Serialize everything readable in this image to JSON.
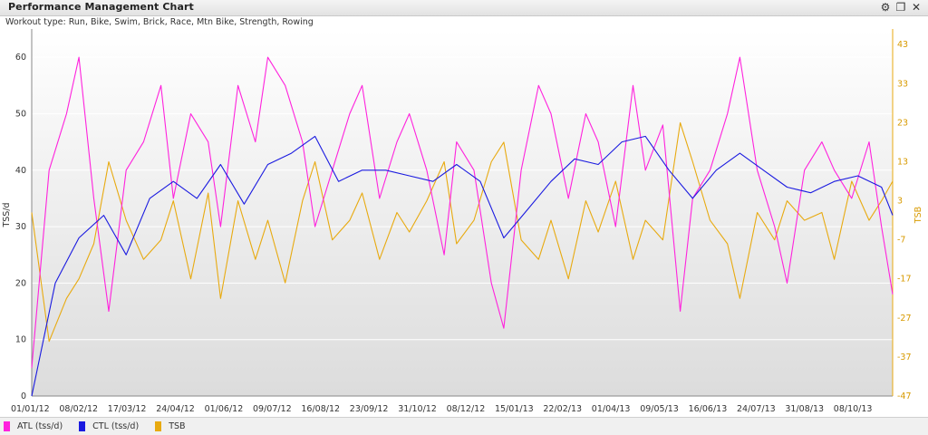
{
  "window": {
    "title": "Performance Management Chart",
    "subtitle": "Workout type: Run, Bike, Swim, Brick, Race, Mtn Bike, Strength, Rowing",
    "icons": [
      "gear-icon",
      "restore-icon",
      "close-icon"
    ]
  },
  "colors": {
    "atl": "#ff22dd",
    "ctl": "#1a1ae0",
    "tsb": "#e8aa10",
    "plot_bg_top": "#ffffff",
    "plot_bg_bottom": "#dcdcdc"
  },
  "chart_data": {
    "type": "line",
    "x_tick_labels": [
      "01/01/12",
      "08/02/12",
      "17/03/12",
      "24/04/12",
      "01/06/12",
      "09/07/12",
      "16/08/12",
      "23/09/12",
      "31/10/12",
      "08/12/12",
      "15/01/13",
      "22/02/13",
      "01/04/13",
      "09/05/13",
      "16/06/13",
      "24/07/13",
      "31/08/13",
      "08/10/13"
    ],
    "x_range": [
      "2012-01-01",
      "2013-11-24"
    ],
    "ylabel": "TSS/d",
    "y2label": "TSB",
    "ylim": [
      0,
      65
    ],
    "y_ticks": [
      0,
      10,
      20,
      30,
      40,
      50,
      60
    ],
    "y2lim": [
      -47,
      47
    ],
    "y2_ticks": [
      -47,
      -37,
      -27,
      -17,
      -7,
      3,
      13,
      23,
      33,
      43
    ],
    "grid": true,
    "legend": "bottom",
    "series": [
      {
        "name": "ATL (tss/d)",
        "axis": "left",
        "color": "#ff22dd",
        "x": [
          "2012-01-01",
          "2012-01-15",
          "2012-01-29",
          "2012-02-08",
          "2012-02-20",
          "2012-03-03",
          "2012-03-17",
          "2012-03-31",
          "2012-04-14",
          "2012-04-24",
          "2012-05-08",
          "2012-05-22",
          "2012-06-01",
          "2012-06-15",
          "2012-06-29",
          "2012-07-09",
          "2012-07-23",
          "2012-08-06",
          "2012-08-16",
          "2012-08-30",
          "2012-09-13",
          "2012-09-23",
          "2012-10-07",
          "2012-10-21",
          "2012-10-31",
          "2012-11-14",
          "2012-11-28",
          "2012-12-08",
          "2012-12-22",
          "2013-01-05",
          "2013-01-15",
          "2013-01-29",
          "2013-02-12",
          "2013-02-22",
          "2013-03-08",
          "2013-03-22",
          "2013-04-01",
          "2013-04-15",
          "2013-04-29",
          "2013-05-09",
          "2013-05-23",
          "2013-06-06",
          "2013-06-16",
          "2013-06-30",
          "2013-07-14",
          "2013-07-24",
          "2013-08-07",
          "2013-08-21",
          "2013-08-31",
          "2013-09-14",
          "2013-09-28",
          "2013-10-08",
          "2013-10-22",
          "2013-11-05",
          "2013-11-15",
          "2013-11-24"
        ],
        "values": [
          5,
          40,
          50,
          60,
          35,
          15,
          40,
          45,
          55,
          35,
          50,
          45,
          30,
          55,
          45,
          60,
          55,
          45,
          30,
          40,
          50,
          55,
          35,
          45,
          50,
          40,
          25,
          45,
          40,
          20,
          12,
          40,
          55,
          50,
          35,
          50,
          45,
          30,
          55,
          40,
          48,
          15,
          35,
          40,
          50,
          60,
          40,
          30,
          20,
          40,
          45,
          40,
          35,
          45,
          30,
          18
        ]
      },
      {
        "name": "CTL (tss/d)",
        "axis": "left",
        "color": "#1a1ae0",
        "x": [
          "2012-01-01",
          "2012-01-20",
          "2012-02-08",
          "2012-02-28",
          "2012-03-17",
          "2012-04-05",
          "2012-04-24",
          "2012-05-13",
          "2012-06-01",
          "2012-06-20",
          "2012-07-09",
          "2012-07-28",
          "2012-08-16",
          "2012-09-04",
          "2012-09-23",
          "2012-10-12",
          "2012-10-31",
          "2012-11-19",
          "2012-12-08",
          "2012-12-27",
          "2013-01-15",
          "2013-02-03",
          "2013-02-22",
          "2013-03-13",
          "2013-04-01",
          "2013-04-20",
          "2013-05-09",
          "2013-05-28",
          "2013-06-16",
          "2013-07-05",
          "2013-07-24",
          "2013-08-12",
          "2013-08-31",
          "2013-09-19",
          "2013-10-08",
          "2013-10-27",
          "2013-11-15",
          "2013-11-24"
        ],
        "values": [
          0,
          20,
          28,
          32,
          25,
          35,
          38,
          35,
          41,
          34,
          41,
          43,
          46,
          38,
          40,
          40,
          39,
          38,
          41,
          38,
          28,
          33,
          38,
          42,
          41,
          45,
          46,
          40,
          35,
          40,
          43,
          40,
          37,
          36,
          38,
          39,
          37,
          32
        ]
      },
      {
        "name": "TSB",
        "axis": "right",
        "color": "#e8aa10",
        "x": [
          "2012-01-01",
          "2012-01-15",
          "2012-01-29",
          "2012-02-08",
          "2012-02-20",
          "2012-03-03",
          "2012-03-17",
          "2012-03-31",
          "2012-04-14",
          "2012-04-24",
          "2012-05-08",
          "2012-05-22",
          "2012-06-01",
          "2012-06-15",
          "2012-06-29",
          "2012-07-09",
          "2012-07-23",
          "2012-08-06",
          "2012-08-16",
          "2012-08-30",
          "2012-09-13",
          "2012-09-23",
          "2012-10-07",
          "2012-10-21",
          "2012-10-31",
          "2012-11-14",
          "2012-11-28",
          "2012-12-08",
          "2012-12-22",
          "2013-01-05",
          "2013-01-15",
          "2013-01-29",
          "2013-02-12",
          "2013-02-22",
          "2013-03-08",
          "2013-03-22",
          "2013-04-01",
          "2013-04-15",
          "2013-04-29",
          "2013-05-09",
          "2013-05-23",
          "2013-06-06",
          "2013-06-16",
          "2013-06-30",
          "2013-07-14",
          "2013-07-24",
          "2013-08-07",
          "2013-08-21",
          "2013-08-31",
          "2013-09-14",
          "2013-09-28",
          "2013-10-08",
          "2013-10-22",
          "2013-11-05",
          "2013-11-15",
          "2013-11-24"
        ],
        "values": [
          0,
          -33,
          -22,
          -17,
          -8,
          13,
          -2,
          -12,
          -7,
          3,
          -17,
          5,
          -22,
          3,
          -12,
          -2,
          -18,
          3,
          13,
          -7,
          -2,
          5,
          -12,
          0,
          -5,
          3,
          13,
          -8,
          -2,
          13,
          18,
          -7,
          -12,
          -2,
          -17,
          3,
          -5,
          8,
          -12,
          -2,
          -7,
          23,
          13,
          -2,
          -8,
          -22,
          0,
          -7,
          3,
          -2,
          0,
          -12,
          8,
          -2,
          3,
          8
        ]
      }
    ]
  },
  "legend": {
    "items": [
      "ATL (tss/d)",
      "CTL (tss/d)",
      "TSB"
    ]
  }
}
